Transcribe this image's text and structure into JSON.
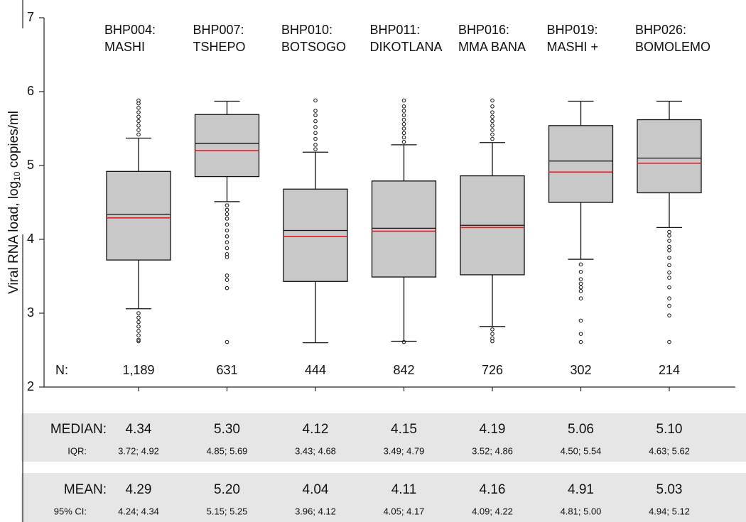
{
  "chart_data": {
    "type": "box",
    "ylabel": [
      "Viral RNA load, log",
      "10",
      " copies/ml"
    ],
    "ylim": [
      2,
      7
    ],
    "yticks": [
      2,
      3,
      4,
      5,
      6,
      7
    ],
    "grid": false,
    "categories": [
      [
        "BHP004:",
        "MASHI"
      ],
      [
        "BHP007:",
        "TSHEPO"
      ],
      [
        "BHP010:",
        "BOTSOGO"
      ],
      [
        "BHP011:",
        "DIKOTLANA"
      ],
      [
        "BHP016:",
        "MMA BANA"
      ],
      [
        "BHP019:",
        "MASHI +"
      ],
      [
        "BHP026:",
        "BOMOLEMO"
      ]
    ],
    "box_color": "#c8c8c8",
    "mean_color": "#e8191c",
    "whisker_low": [
      3.06,
      4.51,
      2.6,
      2.62,
      2.82,
      3.73,
      4.16
    ],
    "q1": [
      3.72,
      4.85,
      3.43,
      3.49,
      3.52,
      4.5,
      4.63
    ],
    "median": [
      4.34,
      5.3,
      4.12,
      4.15,
      4.19,
      5.06,
      5.1
    ],
    "q3": [
      4.92,
      5.69,
      4.68,
      4.79,
      4.86,
      5.54,
      5.62
    ],
    "whisker_high": [
      5.37,
      5.87,
      5.18,
      5.28,
      5.31,
      5.87,
      5.87
    ],
    "mean": [
      4.29,
      5.2,
      4.04,
      4.11,
      4.16,
      4.91,
      5.03
    ],
    "outliers": [
      [
        5.42,
        5.48,
        5.54,
        5.6,
        5.66,
        5.72,
        5.78,
        5.84,
        5.88,
        3.0,
        2.94,
        2.88,
        2.82,
        2.76,
        2.7,
        2.64,
        2.62
      ],
      [
        4.46,
        4.4,
        4.34,
        4.28,
        4.2,
        4.12,
        4.04,
        3.96,
        3.88,
        3.8,
        3.76,
        3.51,
        3.45,
        3.34,
        2.61
      ],
      [
        5.22,
        5.28,
        5.36,
        5.44,
        5.52,
        5.6,
        5.68,
        5.74,
        5.88
      ],
      [
        5.32,
        5.38,
        5.44,
        5.5,
        5.56,
        5.62,
        5.68,
        5.74,
        5.8,
        5.88,
        2.61
      ],
      [
        5.36,
        5.42,
        5.48,
        5.54,
        5.6,
        5.66,
        5.72,
        5.8,
        5.88,
        2.78,
        2.72,
        2.66,
        2.62
      ],
      [
        3.66,
        3.56,
        3.46,
        3.4,
        3.35,
        3.3,
        3.2,
        2.9,
        2.72,
        2.61
      ],
      [
        4.1,
        4.05,
        3.98,
        3.9,
        3.85,
        3.75,
        3.65,
        3.55,
        3.48,
        3.35,
        3.2,
        3.1,
        2.97,
        2.61
      ]
    ],
    "n_heading": "N:",
    "counts": [
      {
        "value": 1189,
        "label": "1,189"
      },
      631,
      444,
      842,
      726,
      302,
      214
    ],
    "median_heading": "MEDIAN:",
    "median_labels": [
      "4.34",
      "5.30",
      "4.12",
      "4.15",
      "4.19",
      "5.06",
      "5.10"
    ],
    "iqr_heading": "IQR:",
    "iqr_labels": [
      "3.72; 4.92",
      "4.85; 5.69",
      "3.43; 4.68",
      "3.49; 4.79",
      "3.52; 4.86",
      "4.50; 5.54",
      "4.63; 5.62"
    ],
    "mean_heading": "MEAN:",
    "mean_labels": [
      "4.29",
      "5.20",
      "4.04",
      "4.11",
      "4.16",
      "4.91",
      "5.03"
    ],
    "ci_heading": "95% CI:",
    "ci_labels": [
      "4.24; 4.34",
      "5.15; 5.25",
      "3.96; 4.12",
      "4.05; 4.17",
      "4.09; 4.22",
      "4.81; 5.00",
      "4.94; 5.12"
    ]
  }
}
